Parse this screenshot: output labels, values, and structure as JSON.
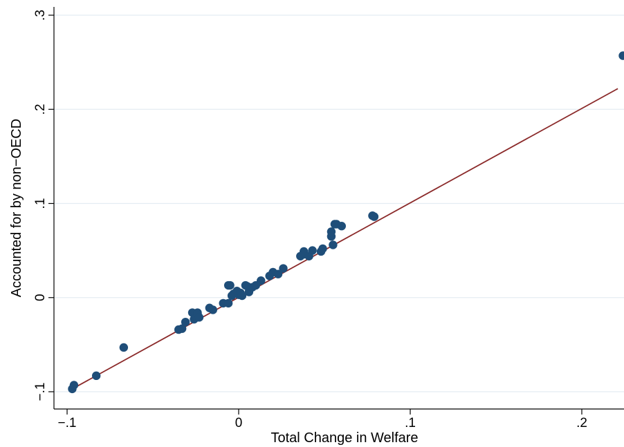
{
  "chart_data": {
    "type": "scatter",
    "xlabel": "Total Change in Welfare",
    "ylabel": "Accounted for by non−OECD",
    "xlim": [
      -0.1,
      0.225
    ],
    "ylim": [
      -0.1,
      0.3
    ],
    "xticks": [
      -0.1,
      0,
      0.1,
      0.2
    ],
    "xtick_labels": [
      "−.1",
      "0",
      ".1",
      ".2"
    ],
    "yticks": [
      -0.1,
      0,
      0.1,
      0.2,
      0.3
    ],
    "ytick_labels": [
      "−.1",
      "0",
      ".1",
      ".2",
      ".3"
    ],
    "grid": true,
    "colors": {
      "points": "#1f4e79",
      "fit_line": "#8b2a2a",
      "grid": "#e4ecf2"
    },
    "fit_line": {
      "x": [
        -0.097,
        0.221
      ],
      "y": [
        -0.097,
        0.222
      ]
    },
    "x": [
      -0.097,
      -0.096,
      -0.083,
      -0.067,
      -0.035,
      -0.033,
      -0.031,
      -0.027,
      -0.026,
      -0.024,
      -0.024,
      -0.023,
      -0.017,
      -0.015,
      -0.009,
      -0.006,
      -0.006,
      -0.005,
      -0.004,
      -0.003,
      -0.001,
      0.0,
      0.001,
      0.002,
      0.004,
      0.005,
      0.006,
      0.008,
      0.01,
      0.013,
      0.018,
      0.02,
      0.023,
      0.026,
      0.036,
      0.038,
      0.038,
      0.041,
      0.043,
      0.048,
      0.049,
      0.054,
      0.054,
      0.055,
      0.056,
      0.057,
      0.06,
      0.078,
      0.079,
      0.224
    ],
    "y": [
      -0.097,
      -0.093,
      -0.083,
      -0.053,
      -0.034,
      -0.033,
      -0.026,
      -0.016,
      -0.023,
      -0.017,
      -0.016,
      -0.021,
      -0.011,
      -0.013,
      -0.006,
      -0.006,
      0.013,
      0.013,
      0.002,
      0.004,
      0.007,
      0.003,
      0.005,
      0.002,
      0.013,
      0.012,
      0.006,
      0.011,
      0.013,
      0.018,
      0.023,
      0.027,
      0.025,
      0.031,
      0.044,
      0.049,
      0.046,
      0.044,
      0.05,
      0.049,
      0.052,
      0.07,
      0.065,
      0.056,
      0.078,
      0.078,
      0.076,
      0.087,
      0.086,
      0.257
    ]
  }
}
